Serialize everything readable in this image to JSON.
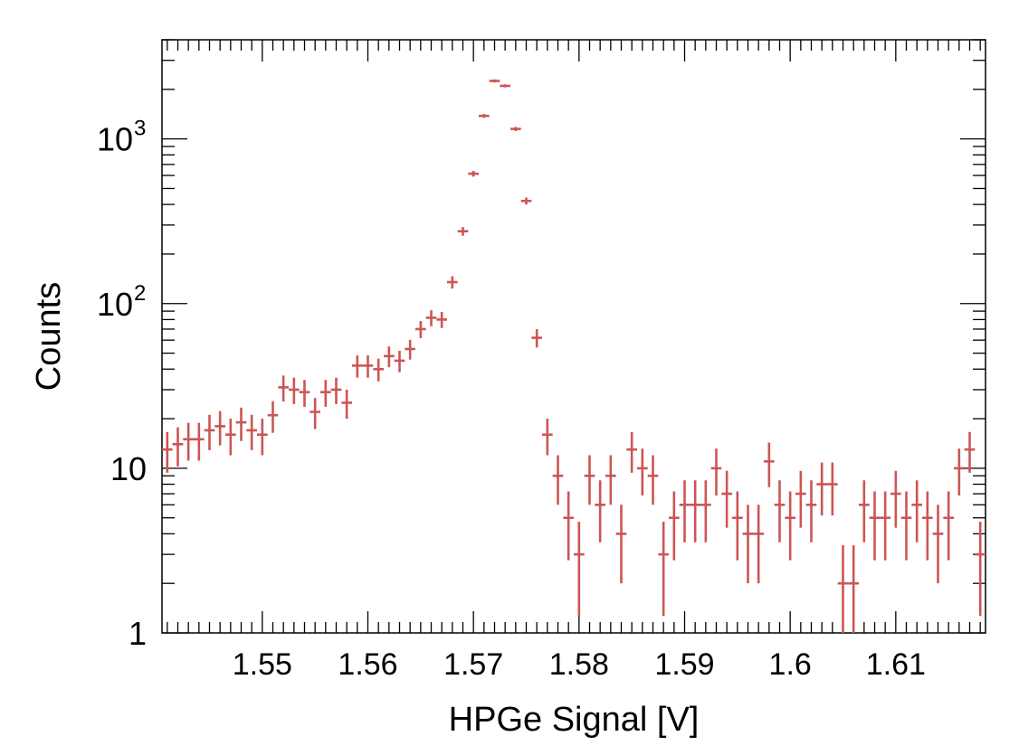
{
  "chart_data": {
    "type": "scatter",
    "title": "",
    "xlabel": "HPGe Signal [V]",
    "ylabel": "Counts",
    "xlim": [
      1.5405,
      1.6185
    ],
    "ylim": [
      1,
      4000
    ],
    "yscale": "log",
    "grid": false,
    "legend": "none",
    "marker_color": "#cc5555",
    "x_ticks": [
      1.55,
      1.56,
      1.57,
      1.58,
      1.59,
      1.6,
      1.61
    ],
    "x_tick_labels": [
      "1.55",
      "1.56",
      "1.57",
      "1.58",
      "1.59",
      "1.6",
      "1.61"
    ],
    "y_tick_labels": [
      {
        "value": 1,
        "base": "1",
        "exp": ""
      },
      {
        "value": 10,
        "base": "10",
        "exp": ""
      },
      {
        "value": 100,
        "base": "10",
        "exp": "2"
      },
      {
        "value": 1000,
        "base": "10",
        "exp": "3"
      }
    ],
    "bin_width": 0.001,
    "series": [
      {
        "x": [
          1.541,
          1.542,
          1.543,
          1.544,
          1.545,
          1.546,
          1.547,
          1.548,
          1.549,
          1.55,
          1.551,
          1.552,
          1.553,
          1.554,
          1.555,
          1.556,
          1.557,
          1.558,
          1.559,
          1.56,
          1.561,
          1.562,
          1.563,
          1.564,
          1.565,
          1.566,
          1.567,
          1.568,
          1.569,
          1.57,
          1.571,
          1.572,
          1.573,
          1.574,
          1.575,
          1.576,
          1.577,
          1.578,
          1.579,
          1.58,
          1.581,
          1.582,
          1.583,
          1.584,
          1.585,
          1.586,
          1.587,
          1.588,
          1.589,
          1.59,
          1.591,
          1.592,
          1.593,
          1.594,
          1.595,
          1.596,
          1.597,
          1.598,
          1.599,
          1.6,
          1.601,
          1.602,
          1.603,
          1.604,
          1.605,
          1.606,
          1.607,
          1.608,
          1.609,
          1.61,
          1.611,
          1.612,
          1.613,
          1.614,
          1.615,
          1.616,
          1.617,
          1.618
        ],
        "y": [
          13,
          14,
          15,
          15,
          17,
          18,
          16,
          19,
          17,
          16,
          21,
          31,
          30,
          29,
          22,
          29,
          30,
          25,
          42,
          42,
          40,
          48,
          45,
          53,
          70,
          82,
          80,
          135,
          275,
          615,
          1380,
          2250,
          2100,
          1150,
          420,
          62,
          16,
          9,
          5,
          3,
          9,
          6,
          9,
          4,
          13,
          10,
          9,
          3,
          5,
          6,
          6,
          6,
          10,
          7,
          5,
          4,
          4,
          11,
          6,
          5,
          7,
          6,
          8,
          8,
          2,
          2,
          6,
          5,
          5,
          7,
          5,
          6,
          5,
          4,
          5,
          10,
          13,
          3
        ]
      }
    ]
  }
}
